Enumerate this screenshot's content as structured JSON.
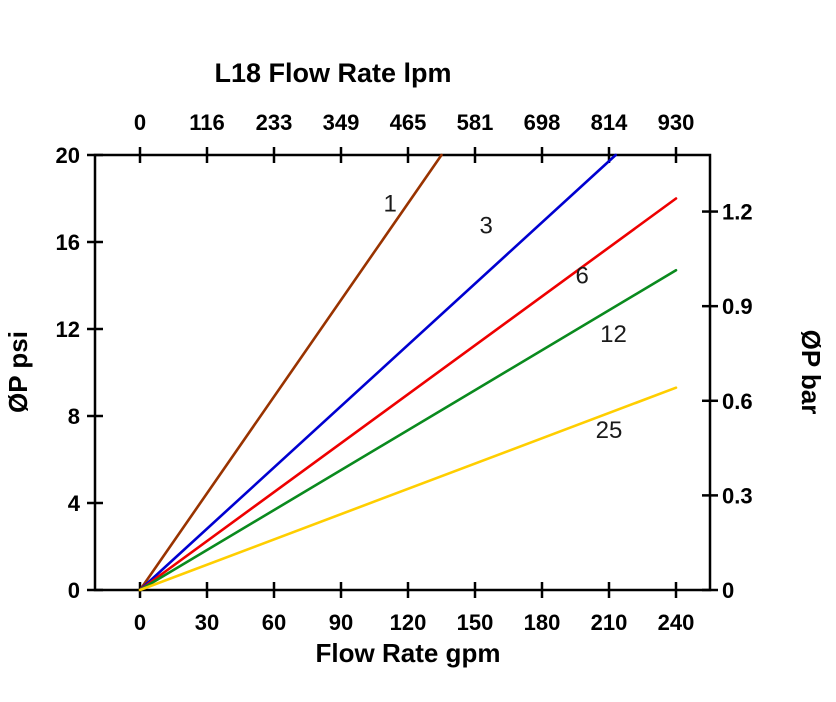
{
  "chart_data": {
    "type": "line",
    "title": "L18 Flow Rate lpm",
    "xlabel": "Flow Rate gpm",
    "ylabel_left": "ØP psi",
    "ylabel_right": "ØP bar",
    "x_bottom": {
      "range": [
        0,
        240
      ],
      "ticks": [
        0,
        30,
        60,
        90,
        120,
        150,
        180,
        210,
        240
      ],
      "tick_labels": [
        "0",
        "30",
        "60",
        "90",
        "120",
        "150",
        "180",
        "210",
        "240"
      ]
    },
    "x_top": {
      "tick_labels": [
        "0",
        "116",
        "233",
        "349",
        "465",
        "581",
        "698",
        "814",
        "930"
      ]
    },
    "y_left": {
      "range": [
        0,
        20
      ],
      "ticks": [
        0,
        4,
        8,
        12,
        16,
        20
      ],
      "tick_labels": [
        "0",
        "4",
        "8",
        "12",
        "16",
        "20"
      ]
    },
    "y_right": {
      "ticks": [
        0,
        0.3,
        0.6,
        0.9,
        1.2
      ],
      "tick_labels": [
        "0",
        "0.3",
        "0.6",
        "0.9",
        "1.2"
      ],
      "psi_per_bar": 14.5
    },
    "grid": false,
    "series": [
      {
        "name": "1",
        "color": "#993300",
        "points_gpm_psi": [
          [
            0,
            0
          ],
          [
            135,
            20
          ]
        ],
        "label_pos": [
          112,
          17.4
        ]
      },
      {
        "name": "3",
        "color": "#0000d0",
        "points_gpm_psi": [
          [
            0,
            0
          ],
          [
            213,
            20
          ]
        ],
        "label_pos": [
          155,
          16.4
        ]
      },
      {
        "name": "6",
        "color": "#ee0000",
        "points_gpm_psi": [
          [
            0,
            0
          ],
          [
            240,
            18
          ]
        ],
        "label_pos": [
          198,
          14.1
        ]
      },
      {
        "name": "12",
        "color": "#0a8a1e",
        "points_gpm_psi": [
          [
            0,
            0
          ],
          [
            240,
            14.7
          ]
        ],
        "label_pos": [
          212,
          11.4
        ]
      },
      {
        "name": "25",
        "color": "#ffce00",
        "points_gpm_psi": [
          [
            0,
            0
          ],
          [
            240,
            9.3
          ]
        ],
        "label_pos": [
          210,
          7.0
        ]
      }
    ]
  }
}
